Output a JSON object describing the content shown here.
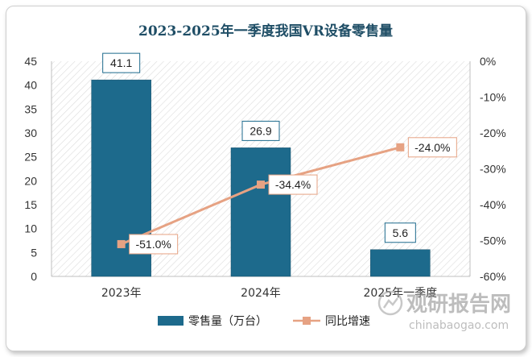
{
  "chart_data": {
    "type": "bar",
    "title": "2023-2025年一季度我国VR设备零售量",
    "categories": [
      "2023年",
      "2024年",
      "2025年一季度"
    ],
    "series": [
      {
        "name": "零售量（万台）",
        "type": "bar",
        "axis": "left",
        "values": [
          41.1,
          26.9,
          5.6
        ],
        "labels": [
          "41.1",
          "26.9",
          "5.6"
        ],
        "color": "#1d6a8c"
      },
      {
        "name": "同比增速",
        "type": "line",
        "axis": "right",
        "values": [
          -51.0,
          -34.4,
          -24.0
        ],
        "labels": [
          "-51.0%",
          "-34.4%",
          "-24.0%"
        ],
        "color": "#e6a283"
      }
    ],
    "y_left": {
      "min": 0,
      "max": 45,
      "step": 5,
      "ticks": [
        "0",
        "5",
        "10",
        "15",
        "20",
        "25",
        "30",
        "35",
        "40",
        "45"
      ]
    },
    "y_right": {
      "min": -60,
      "max": 0,
      "step": 10,
      "ticks": [
        "-60%",
        "-50%",
        "-40%",
        "-30%",
        "-20%",
        "-10%",
        "0%"
      ]
    },
    "legend_position": "bottom"
  },
  "watermark": {
    "brand": "观研报告网",
    "url": "chinabaogao.com"
  }
}
